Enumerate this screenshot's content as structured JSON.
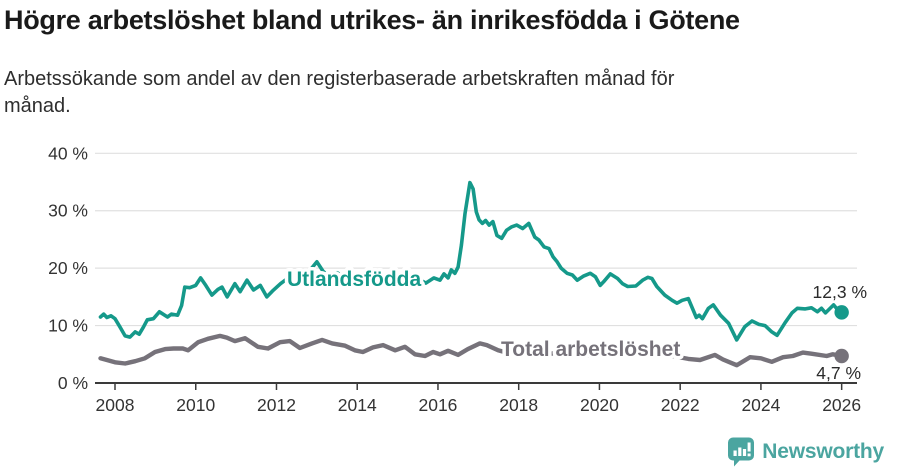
{
  "title": "Högre arbetslöshet bland utrikes- än inrikesfödda i Götene",
  "subtitle_lines": [
    "Arbetssökande som andel av den registerbaserade arbetskraften månad för",
    "månad."
  ],
  "footer": {
    "brand": "Newsworthy",
    "logo_icon": "bar-chart-speech-bubble-icon"
  },
  "colors": {
    "series_foreign_born": "#15998a",
    "series_total": "#76727a",
    "grid": "#e0e0e0",
    "axis": "#3a3a3a",
    "tick_label": "#333333",
    "value_label": "#2b2b2b",
    "title_text": "#1a1a1a",
    "logo": "#4ba5a0",
    "background": "#ffffff"
  },
  "chart_data": {
    "type": "line",
    "title": "Högre arbetslöshet bland utrikes- än inrikesfödda i Götene",
    "subtitle": "Arbetssökande som andel av den registerbaserade arbetskraften månad för månad.",
    "xlabel": "",
    "ylabel": "",
    "grid": "horizontal",
    "legend_position": "inline-labels",
    "x_axis": {
      "tick_labels": [
        "2008",
        "2010",
        "2012",
        "2014",
        "2016",
        "2018",
        "2020",
        "2022",
        "2024",
        "2026"
      ],
      "tick_values": [
        2008,
        2010,
        2012,
        2014,
        2016,
        2018,
        2020,
        2022,
        2024,
        2026
      ],
      "range": [
        2007.5,
        2026.35
      ]
    },
    "y_axis": {
      "tick_labels": [
        "0 %",
        "10 %",
        "20 %",
        "30 %",
        "40 %"
      ],
      "tick_values": [
        0,
        10,
        20,
        30,
        40
      ],
      "range": [
        0,
        40
      ]
    },
    "series": [
      {
        "name": "Utlandsfödda",
        "inline_label": "Utlandsfödda",
        "end_label": "12,3 %",
        "last_value": 12.3,
        "color": "#15998a",
        "points": [
          [
            2007.64,
            11.5
          ],
          [
            2007.72,
            12.0
          ],
          [
            2007.8,
            11.4
          ],
          [
            2007.9,
            11.7
          ],
          [
            2008.0,
            11.2
          ],
          [
            2008.12,
            9.8
          ],
          [
            2008.25,
            8.2
          ],
          [
            2008.37,
            8.0
          ],
          [
            2008.5,
            8.9
          ],
          [
            2008.6,
            8.5
          ],
          [
            2008.7,
            9.7
          ],
          [
            2008.8,
            11.0
          ],
          [
            2008.95,
            11.2
          ],
          [
            2009.1,
            12.4
          ],
          [
            2009.3,
            11.5
          ],
          [
            2009.4,
            12.0
          ],
          [
            2009.55,
            11.8
          ],
          [
            2009.65,
            13.5
          ],
          [
            2009.73,
            16.7
          ],
          [
            2009.85,
            16.6
          ],
          [
            2010.0,
            17.0
          ],
          [
            2010.12,
            18.3
          ],
          [
            2010.25,
            17.0
          ],
          [
            2010.4,
            15.3
          ],
          [
            2010.55,
            16.3
          ],
          [
            2010.65,
            16.7
          ],
          [
            2010.78,
            15.0
          ],
          [
            2010.97,
            17.3
          ],
          [
            2011.1,
            15.9
          ],
          [
            2011.27,
            17.9
          ],
          [
            2011.43,
            16.2
          ],
          [
            2011.6,
            17.0
          ],
          [
            2011.76,
            15.0
          ],
          [
            2011.9,
            16.0
          ],
          [
            2012.1,
            17.3
          ],
          [
            2012.33,
            18.5
          ],
          [
            2012.55,
            18.8
          ],
          [
            2012.7,
            19.3
          ],
          [
            2012.85,
            19.8
          ],
          [
            2013.0,
            21.1
          ],
          [
            2013.15,
            19.5
          ],
          [
            2013.3,
            18.5
          ],
          [
            2013.5,
            19.2
          ],
          [
            2013.7,
            18.4
          ],
          [
            2013.9,
            19.0
          ],
          [
            2014.1,
            18.2
          ],
          [
            2014.3,
            18.8
          ],
          [
            2014.5,
            18.0
          ],
          [
            2014.7,
            18.5
          ],
          [
            2014.9,
            17.7
          ],
          [
            2015.1,
            18.3
          ],
          [
            2015.3,
            17.6
          ],
          [
            2015.5,
            18.2
          ],
          [
            2015.7,
            17.4
          ],
          [
            2015.9,
            18.3
          ],
          [
            2016.05,
            17.9
          ],
          [
            2016.15,
            19.0
          ],
          [
            2016.25,
            18.3
          ],
          [
            2016.33,
            19.7
          ],
          [
            2016.42,
            19.1
          ],
          [
            2016.5,
            20.2
          ],
          [
            2016.58,
            24.0
          ],
          [
            2016.67,
            29.5
          ],
          [
            2016.79,
            34.9
          ],
          [
            2016.87,
            33.8
          ],
          [
            2016.95,
            29.8
          ],
          [
            2017.02,
            28.4
          ],
          [
            2017.1,
            27.8
          ],
          [
            2017.18,
            28.3
          ],
          [
            2017.27,
            27.5
          ],
          [
            2017.36,
            28.1
          ],
          [
            2017.46,
            25.7
          ],
          [
            2017.58,
            25.2
          ],
          [
            2017.7,
            26.6
          ],
          [
            2017.83,
            27.2
          ],
          [
            2017.95,
            27.5
          ],
          [
            2018.1,
            26.9
          ],
          [
            2018.25,
            27.8
          ],
          [
            2018.4,
            25.4
          ],
          [
            2018.5,
            24.9
          ],
          [
            2018.63,
            23.7
          ],
          [
            2018.75,
            23.4
          ],
          [
            2018.85,
            22.0
          ],
          [
            2018.95,
            21.1
          ],
          [
            2019.05,
            20.0
          ],
          [
            2019.2,
            19.1
          ],
          [
            2019.33,
            18.8
          ],
          [
            2019.45,
            17.9
          ],
          [
            2019.6,
            18.6
          ],
          [
            2019.77,
            19.1
          ],
          [
            2019.9,
            18.5
          ],
          [
            2020.02,
            17.0
          ],
          [
            2020.1,
            17.6
          ],
          [
            2020.27,
            19.0
          ],
          [
            2020.45,
            18.2
          ],
          [
            2020.57,
            17.3
          ],
          [
            2020.7,
            16.8
          ],
          [
            2020.9,
            16.9
          ],
          [
            2021.07,
            17.9
          ],
          [
            2021.2,
            18.4
          ],
          [
            2021.3,
            18.2
          ],
          [
            2021.42,
            16.8
          ],
          [
            2021.62,
            15.3
          ],
          [
            2021.8,
            14.4
          ],
          [
            2021.92,
            13.9
          ],
          [
            2022.05,
            14.4
          ],
          [
            2022.2,
            14.7
          ],
          [
            2022.4,
            11.4
          ],
          [
            2022.47,
            11.8
          ],
          [
            2022.55,
            11.2
          ],
          [
            2022.7,
            13.0
          ],
          [
            2022.82,
            13.6
          ],
          [
            2023.0,
            11.8
          ],
          [
            2023.2,
            10.4
          ],
          [
            2023.4,
            7.5
          ],
          [
            2023.6,
            9.8
          ],
          [
            2023.78,
            10.8
          ],
          [
            2023.95,
            10.2
          ],
          [
            2024.1,
            10.0
          ],
          [
            2024.27,
            8.9
          ],
          [
            2024.4,
            8.3
          ],
          [
            2024.6,
            10.5
          ],
          [
            2024.77,
            12.2
          ],
          [
            2024.9,
            13.0
          ],
          [
            2025.1,
            12.9
          ],
          [
            2025.25,
            13.1
          ],
          [
            2025.4,
            12.4
          ],
          [
            2025.5,
            13.0
          ],
          [
            2025.6,
            12.2
          ],
          [
            2025.8,
            13.6
          ],
          [
            2025.92,
            12.6
          ],
          [
            2026.0,
            12.3
          ]
        ]
      },
      {
        "name": "Total arbetslöshet",
        "inline_label": "Total arbetslöshet",
        "end_label": "4,7 %",
        "last_value": 4.7,
        "color": "#76727a",
        "points": [
          [
            2007.64,
            4.3
          ],
          [
            2007.8,
            4.0
          ],
          [
            2008.0,
            3.6
          ],
          [
            2008.25,
            3.4
          ],
          [
            2008.5,
            3.8
          ],
          [
            2008.74,
            4.3
          ],
          [
            2008.99,
            5.4
          ],
          [
            2009.24,
            5.9
          ],
          [
            2009.45,
            6.0
          ],
          [
            2009.68,
            6.0
          ],
          [
            2009.81,
            5.7
          ],
          [
            2010.06,
            7.1
          ],
          [
            2010.3,
            7.7
          ],
          [
            2010.6,
            8.2
          ],
          [
            2010.77,
            7.9
          ],
          [
            2010.97,
            7.3
          ],
          [
            2011.22,
            7.8
          ],
          [
            2011.54,
            6.3
          ],
          [
            2011.79,
            6.0
          ],
          [
            2012.09,
            7.1
          ],
          [
            2012.33,
            7.3
          ],
          [
            2012.58,
            6.1
          ],
          [
            2012.88,
            6.9
          ],
          [
            2013.13,
            7.5
          ],
          [
            2013.38,
            6.9
          ],
          [
            2013.7,
            6.5
          ],
          [
            2013.94,
            5.7
          ],
          [
            2014.14,
            5.4
          ],
          [
            2014.39,
            6.2
          ],
          [
            2014.64,
            6.6
          ],
          [
            2014.94,
            5.7
          ],
          [
            2015.18,
            6.3
          ],
          [
            2015.43,
            5.0
          ],
          [
            2015.68,
            4.7
          ],
          [
            2015.88,
            5.4
          ],
          [
            2016.05,
            5.0
          ],
          [
            2016.25,
            5.6
          ],
          [
            2016.5,
            4.9
          ],
          [
            2016.74,
            5.9
          ],
          [
            2017.04,
            6.9
          ],
          [
            2017.21,
            6.6
          ],
          [
            2017.49,
            5.7
          ],
          [
            2017.7,
            5.3
          ],
          [
            2018.0,
            5.8
          ],
          [
            2018.3,
            5.4
          ],
          [
            2018.6,
            4.9
          ],
          [
            2018.9,
            5.2
          ],
          [
            2019.2,
            5.0
          ],
          [
            2019.5,
            4.6
          ],
          [
            2019.8,
            4.9
          ],
          [
            2020.1,
            5.6
          ],
          [
            2020.4,
            6.2
          ],
          [
            2020.7,
            5.9
          ],
          [
            2021.0,
            5.8
          ],
          [
            2021.3,
            5.5
          ],
          [
            2021.6,
            5.0
          ],
          [
            2021.9,
            4.6
          ],
          [
            2022.2,
            4.2
          ],
          [
            2022.49,
            4.0
          ],
          [
            2022.86,
            4.9
          ],
          [
            2023.06,
            4.1
          ],
          [
            2023.4,
            3.1
          ],
          [
            2023.73,
            4.5
          ],
          [
            2024.0,
            4.3
          ],
          [
            2024.27,
            3.7
          ],
          [
            2024.55,
            4.5
          ],
          [
            2024.79,
            4.7
          ],
          [
            2025.04,
            5.3
          ],
          [
            2025.25,
            5.1
          ],
          [
            2025.63,
            4.7
          ],
          [
            2025.78,
            5.0
          ],
          [
            2026.0,
            4.7
          ]
        ]
      }
    ]
  }
}
